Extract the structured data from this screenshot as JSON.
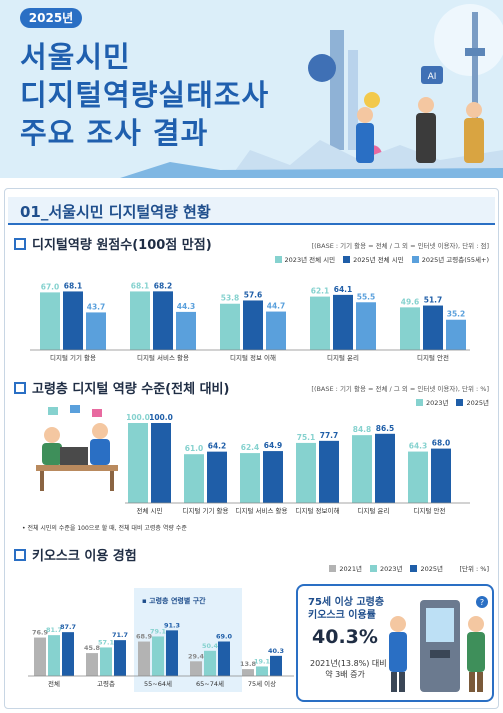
{
  "header": {
    "year_badge": "2025년",
    "title_lines": [
      "서울시민",
      "디지털역량실태조사",
      "주요 조사 결과"
    ]
  },
  "section": {
    "title": "01_서울시민 디지털역량 현황"
  },
  "charts": {
    "c1": {
      "heading": "디지털역량 원점수(100점 만점)",
      "base_note": "[(BASE : 기기 활용 = 전체 / 그 외 = 인터넷 이용자), 단위 : 점]"
    },
    "c2": {
      "heading": "고령층 디지털 역량 수준(전체 대비)",
      "base_note": "[(BASE : 기기 활용 = 전체 / 그 외 = 인터넷 이용자), 단위 : %]",
      "footnote": "• 전체 시민의 수준을 100으로 할 때, 전체 대비 고령층 역량 수준"
    },
    "c3": {
      "heading": "키오스크 이용 경험",
      "unit": "[단위 : %]",
      "age_band_label": "▪ 고령층 연령별 구간"
    }
  },
  "callout": {
    "title_1": "75세 이상 고령층",
    "title_2": "키오스크 이용률",
    "value": "40.3%",
    "sub_1": "2021년(13.8%) 대비",
    "sub_2": "약 3배 증가"
  },
  "colors": {
    "teal": "#86d2cf",
    "navy": "#1f5ea8",
    "sky": "#5aa0dc",
    "gray": "#b3b3b3"
  },
  "chart_data": [
    {
      "type": "bar",
      "title": "디지털역량 원점수(100점 만점)",
      "categories": [
        "디지털 기기 활용",
        "디지털 서비스 활용",
        "디지털 정보 이해",
        "디지털 윤리",
        "디지털 안전"
      ],
      "series": [
        {
          "name": "2023년 전체 시민",
          "values": [
            67.0,
            68.1,
            53.8,
            62.1,
            49.6
          ]
        },
        {
          "name": "2025년 전체 시민",
          "values": [
            68.1,
            68.2,
            57.6,
            64.1,
            51.7
          ]
        },
        {
          "name": "2025년 고령층(55세+)",
          "values": [
            43.7,
            44.3,
            44.7,
            55.5,
            35.2
          ]
        }
      ],
      "ylim": [
        0,
        100
      ],
      "legend": "top-right"
    },
    {
      "type": "bar",
      "title": "고령층 디지털 역량 수준(전체 대비)",
      "categories": [
        "전체 시민",
        "디지털 기기 활용",
        "디지털 서비스 활용",
        "디지털 정보이해",
        "디지털 윤리",
        "디지털 안전"
      ],
      "series": [
        {
          "name": "2023년",
          "values": [
            100.0,
            61.0,
            62.4,
            75.1,
            84.8,
            64.3
          ]
        },
        {
          "name": "2025년",
          "values": [
            100.0,
            64.2,
            64.9,
            77.7,
            86.5,
            68.0
          ]
        }
      ],
      "ylim": [
        0,
        100
      ],
      "legend": "top-right"
    },
    {
      "type": "bar",
      "title": "키오스크 이용 경험",
      "categories": [
        "전체",
        "고령층",
        "55~64세",
        "65~74세",
        "75세 이상"
      ],
      "series": [
        {
          "name": "2021년",
          "values": [
            76.9,
            45.8,
            68.9,
            29.4,
            13.8
          ]
        },
        {
          "name": "2023년",
          "values": [
            81.7,
            57.1,
            79.1,
            50.4,
            19.1
          ]
        },
        {
          "name": "2025년",
          "values": [
            87.7,
            71.7,
            91.3,
            69.0,
            40.3
          ]
        }
      ],
      "ylim": [
        0,
        100
      ],
      "legend": "top-right"
    }
  ]
}
